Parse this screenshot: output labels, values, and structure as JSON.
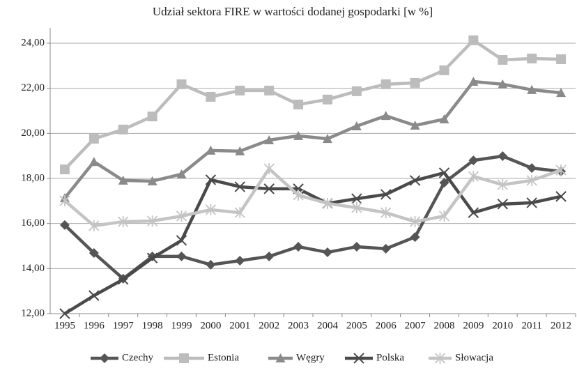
{
  "chart_data": {
    "type": "line",
    "title": "Udział sektora FIRE w wartości dodanej gospodarki [w %]",
    "categories": [
      "1995",
      "1996",
      "1997",
      "1998",
      "1999",
      "2000",
      "2001",
      "2002",
      "2003",
      "2004",
      "2005",
      "2006",
      "2007",
      "2008",
      "2009",
      "2010",
      "2011",
      "2012"
    ],
    "ylim": [
      12,
      24.68
    ],
    "yticks": [
      {
        "value": 12,
        "label": "12,00"
      },
      {
        "value": 14,
        "label": "14,00"
      },
      {
        "value": 16,
        "label": "16,00"
      },
      {
        "value": 18,
        "label": "18,00"
      },
      {
        "value": 20,
        "label": "20,00"
      },
      {
        "value": 22,
        "label": "22,00"
      },
      {
        "value": 24,
        "label": "24,00"
      }
    ],
    "grid": true,
    "legend": "bottom",
    "series": [
      {
        "name": "Czechy",
        "color": "#555555",
        "marker": "diamond",
        "values": [
          15.93,
          14.69,
          13.55,
          14.54,
          14.54,
          14.17,
          14.35,
          14.54,
          14.97,
          14.72,
          14.97,
          14.88,
          15.4,
          17.81,
          18.8,
          18.99,
          18.46,
          18.31
        ]
      },
      {
        "name": "Estonia",
        "color": "#bcbcbc",
        "marker": "square",
        "values": [
          18.4,
          19.76,
          20.17,
          20.75,
          22.18,
          21.62,
          21.9,
          21.9,
          21.28,
          21.5,
          21.87,
          22.18,
          22.24,
          22.8,
          24.13,
          23.26,
          23.32,
          23.29
        ]
      },
      {
        "name": "Węgry",
        "color": "#8a8a8a",
        "marker": "triangle",
        "values": [
          17.13,
          18.74,
          17.91,
          17.88,
          18.19,
          19.24,
          19.21,
          19.7,
          19.89,
          19.76,
          20.32,
          20.78,
          20.35,
          20.63,
          22.3,
          22.18,
          21.93,
          21.8
        ]
      },
      {
        "name": "Polska",
        "color": "#4a4a4a",
        "marker": "x",
        "values": [
          12.0,
          12.8,
          13.52,
          14.47,
          15.25,
          17.94,
          17.63,
          17.54,
          17.54,
          16.89,
          17.1,
          17.29,
          17.91,
          18.25,
          16.48,
          16.86,
          16.92,
          17.2
        ]
      },
      {
        "name": "Słowacja",
        "color": "#c4c4c4",
        "marker": "asterisk",
        "values": [
          17.01,
          15.9,
          16.08,
          16.11,
          16.33,
          16.61,
          16.48,
          18.43,
          17.26,
          16.89,
          16.7,
          16.48,
          16.08,
          16.33,
          18.09,
          17.72,
          17.91,
          18.37
        ]
      }
    ]
  }
}
